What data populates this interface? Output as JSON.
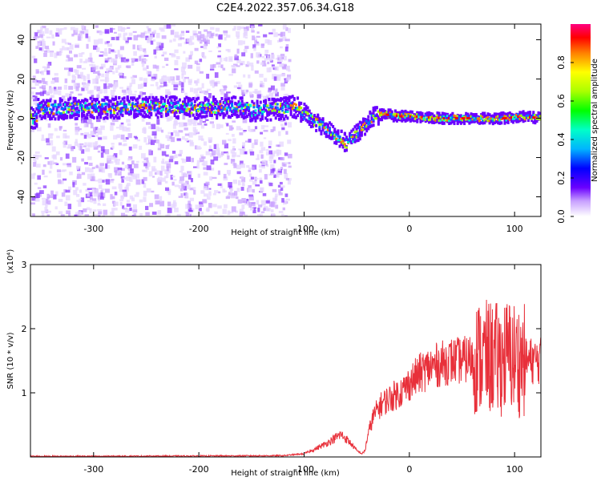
{
  "title": "C2E4.2022.357.06.34.G18",
  "chart_data": [
    {
      "type": "heatmap",
      "xlabel": "Height of straight line (km)",
      "ylabel": "Frequency (Hz)",
      "xlim": [
        -360,
        125
      ],
      "ylim": [
        -50,
        48
      ],
      "xticks": [
        "-300",
        "-200",
        "-100",
        "0",
        "100"
      ],
      "yticks": [
        "-40",
        "-20",
        "0",
        "20",
        "40"
      ],
      "colorbar": {
        "label": "Normalized spectral amplitude",
        "range": [
          0,
          1
        ],
        "ticks": [
          "0.0",
          "0.2",
          "0.4",
          "0.6",
          "0.8"
        ]
      },
      "ridge": [
        {
          "x": -355,
          "y": 5
        },
        {
          "x": -320,
          "y": 5
        },
        {
          "x": -300,
          "y": 5
        },
        {
          "x": -250,
          "y": 6
        },
        {
          "x": -200,
          "y": 5
        },
        {
          "x": -170,
          "y": 6
        },
        {
          "x": -150,
          "y": 4
        },
        {
          "x": -120,
          "y": 5
        },
        {
          "x": -110,
          "y": 6
        },
        {
          "x": -100,
          "y": 2
        },
        {
          "x": -90,
          "y": -2
        },
        {
          "x": -80,
          "y": -5
        },
        {
          "x": -70,
          "y": -9
        },
        {
          "x": -60,
          "y": -13
        },
        {
          "x": -55,
          "y": -10
        },
        {
          "x": -50,
          "y": -7
        },
        {
          "x": -45,
          "y": -5
        },
        {
          "x": -40,
          "y": -2
        },
        {
          "x": -35,
          "y": 1
        },
        {
          "x": -25,
          "y": 2
        },
        {
          "x": -10,
          "y": 1
        },
        {
          "x": 0,
          "y": 1
        },
        {
          "x": 30,
          "y": 0
        },
        {
          "x": 60,
          "y": 0
        },
        {
          "x": 90,
          "y": 0
        },
        {
          "x": 105,
          "y": 1
        },
        {
          "x": 125,
          "y": 0
        }
      ],
      "noise_region": [
        -360,
        -115
      ]
    },
    {
      "type": "line",
      "xlabel": "Height of straight line (km)",
      "ylabel": "SNR (10 * v/v)",
      "yunit": "(x10⁴)",
      "xlim": [
        -360,
        125
      ],
      "ylim": [
        0,
        3
      ],
      "xticks": [
        "-300",
        "-200",
        "-100",
        "0",
        "100"
      ],
      "yticks": [
        "1",
        "2",
        "3"
      ],
      "series": [
        {
          "color": "#e8303a",
          "x": [
            -360,
            -300,
            -200,
            -120,
            -100,
            -90,
            -80,
            -70,
            -65,
            -60,
            -55,
            -50,
            -45,
            -42,
            -40,
            -35,
            -30,
            -25,
            -20,
            -15,
            -10,
            -5,
            0,
            10,
            20,
            30,
            40,
            50,
            60,
            70,
            80,
            85,
            90,
            95,
            100,
            105,
            110,
            115,
            125
          ],
          "y": [
            0.01,
            0.01,
            0.015,
            0.02,
            0.05,
            0.12,
            0.2,
            0.3,
            0.35,
            0.28,
            0.2,
            0.1,
            0.05,
            0.1,
            0.3,
            0.6,
            0.75,
            0.85,
            0.9,
            0.95,
            1.0,
            1.05,
            1.15,
            1.3,
            1.4,
            1.45,
            1.5,
            1.5,
            1.55,
            1.55,
            1.55,
            1.5,
            1.55,
            1.6,
            1.55,
            1.5,
            1.5,
            1.5,
            1.5
          ]
        }
      ]
    }
  ]
}
